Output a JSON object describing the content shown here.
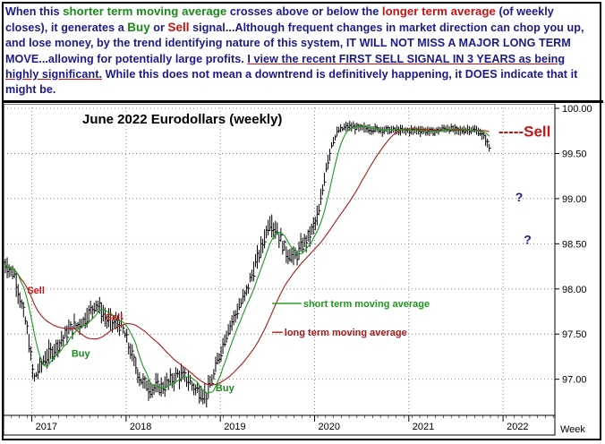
{
  "note": {
    "s1": "When this ",
    "s2": "shorter term moving average",
    "s3": " crosses above or below the ",
    "s4": "longer term average",
    "s5": " (of weekly closes), it generates a ",
    "s6": "Buy",
    "s7": " or ",
    "s8": "Sell",
    "s9": " signal...Although frequent changes in market direction can chop you up, and lose money, by the trend identifying nature of this system, IT WILL NOT MISS A MAJOR LONG TERM MOVE...allowing for potentially large profits. ",
    "s10": "I view  the recent ",
    "s11": "FIRST SELL SIGNAL IN 3 YEARS",
    "s12": " as being highly significant.",
    "s13": " While this does not mean a downtrend is definitively happening, it ",
    "s14": "DOES",
    "s15": " indicate that it might be."
  },
  "colors": {
    "short_ma": "#1a9a1a",
    "long_ma": "#b01818",
    "bars": "#000000",
    "buy": "#178a17",
    "sell": "#c81414",
    "question": "#1a1a8c"
  },
  "chart_data": {
    "type": "bar",
    "title": "June 2022 Eurodollars (weekly)",
    "xlabel": "Week",
    "x_ticks": [
      "2017",
      "2018",
      "2019",
      "2020",
      "2021",
      "2022"
    ],
    "y_ticks": [
      "97.00",
      "97.50",
      "98.00",
      "98.50",
      "99.00",
      "99.50",
      "100.00"
    ],
    "ylim": [
      96.6,
      100.05
    ],
    "xlim": [
      2016.7,
      2022.55
    ],
    "grid": true,
    "series": [
      {
        "name": "short term moving average"
      },
      {
        "name": "long term moving average"
      }
    ],
    "price_path": [
      [
        2016.7,
        98.3
      ],
      [
        2016.82,
        98.15
      ],
      [
        2016.95,
        97.55
      ],
      [
        2017.02,
        97.0
      ],
      [
        2017.12,
        97.2
      ],
      [
        2017.25,
        97.35
      ],
      [
        2017.4,
        97.55
      ],
      [
        2017.55,
        97.65
      ],
      [
        2017.68,
        97.85
      ],
      [
        2017.8,
        97.65
      ],
      [
        2017.95,
        97.6
      ],
      [
        2018.05,
        97.3
      ],
      [
        2018.15,
        97.0
      ],
      [
        2018.25,
        96.9
      ],
      [
        2018.4,
        96.92
      ],
      [
        2018.55,
        97.05
      ],
      [
        2018.65,
        97.0
      ],
      [
        2018.75,
        96.88
      ],
      [
        2018.85,
        96.82
      ],
      [
        2018.92,
        97.0
      ],
      [
        2019.0,
        97.3
      ],
      [
        2019.08,
        97.55
      ],
      [
        2019.15,
        97.7
      ],
      [
        2019.25,
        97.9
      ],
      [
        2019.35,
        98.2
      ],
      [
        2019.45,
        98.5
      ],
      [
        2019.52,
        98.75
      ],
      [
        2019.6,
        98.65
      ],
      [
        2019.7,
        98.4
      ],
      [
        2019.8,
        98.35
      ],
      [
        2019.88,
        98.5
      ],
      [
        2019.95,
        98.6
      ],
      [
        2020.05,
        98.85
      ],
      [
        2020.12,
        99.35
      ],
      [
        2020.18,
        99.6
      ],
      [
        2020.25,
        99.75
      ],
      [
        2020.35,
        99.8
      ],
      [
        2020.5,
        99.78
      ],
      [
        2020.65,
        99.77
      ],
      [
        2020.8,
        99.76
      ],
      [
        2020.95,
        99.75
      ],
      [
        2021.1,
        99.76
      ],
      [
        2021.25,
        99.74
      ],
      [
        2021.4,
        99.78
      ],
      [
        2021.55,
        99.75
      ],
      [
        2021.65,
        99.77
      ],
      [
        2021.75,
        99.74
      ],
      [
        2021.82,
        99.65
      ],
      [
        2021.86,
        99.55
      ]
    ],
    "annotations": [
      {
        "text": "Sell",
        "type": "sell",
        "x": 2016.95,
        "y": 97.95
      },
      {
        "text": "Buy",
        "type": "buy",
        "x": 2017.42,
        "y": 97.25
      },
      {
        "text": "Sell",
        "type": "sell",
        "x": 2017.78,
        "y": 97.65
      },
      {
        "text": "Buy",
        "type": "buy",
        "x": 2018.95,
        "y": 96.87
      },
      {
        "text": "-----Sell",
        "type": "sell-big",
        "x": 2021.95,
        "y": 99.69
      },
      {
        "text": "?",
        "type": "question",
        "x": 2022.13,
        "y": 98.97
      },
      {
        "text": "?",
        "type": "question",
        "x": 2022.22,
        "y": 98.5
      }
    ],
    "labels": [
      {
        "text": "short term moving average",
        "target": "short",
        "x": 2019.55,
        "y": 97.84,
        "text_x": 2019.88
      },
      {
        "text": "long term moving average",
        "target": "long",
        "x": 2019.55,
        "y": 97.52,
        "text_x": 2019.68
      }
    ]
  }
}
